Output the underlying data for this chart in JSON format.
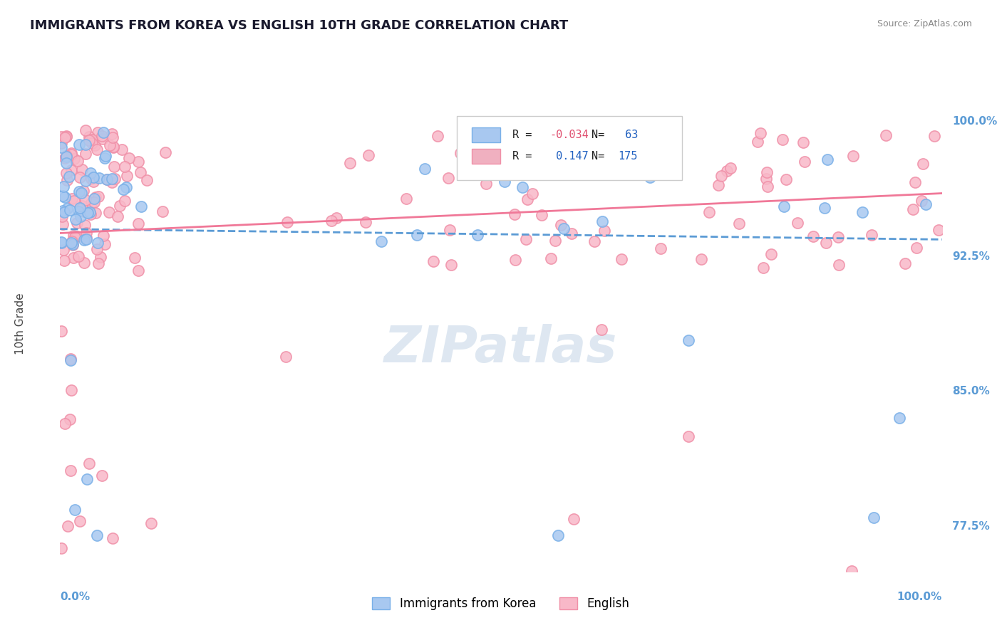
{
  "title": "IMMIGRANTS FROM KOREA VS ENGLISH 10TH GRADE CORRELATION CHART",
  "source_text": "Source: ZipAtlas.com",
  "ylabel": "10th Grade",
  "y_ticks_right": [
    77.5,
    85.0,
    92.5,
    100.0
  ],
  "y_tick_labels_right": [
    "77.5%",
    "85.0%",
    "92.5%",
    "100.0%"
  ],
  "xlim": [
    0.0,
    100.0
  ],
  "ylim": [
    75.0,
    102.5
  ],
  "korea_color": "#a8c8f0",
  "korea_edge_color": "#7ab0e8",
  "english_color": "#f8b8c8",
  "english_edge_color": "#f090a8",
  "korea_trend_color": "#5b9bd5",
  "english_trend_color": "#f07898",
  "legend_box_color_korea": "#a8c8f0",
  "legend_box_color_english": "#f0b0c0",
  "R_korea": -0.034,
  "N_korea": 63,
  "R_english": 0.147,
  "N_english": 175,
  "watermark_text": "ZIPatlas",
  "watermark_color": "#c8d8e8",
  "title_color": "#1a1a2e",
  "title_fontsize": 13,
  "axis_color": "#5b9bd5",
  "grid_color": "#e0e0e0",
  "background_color": "#ffffff"
}
